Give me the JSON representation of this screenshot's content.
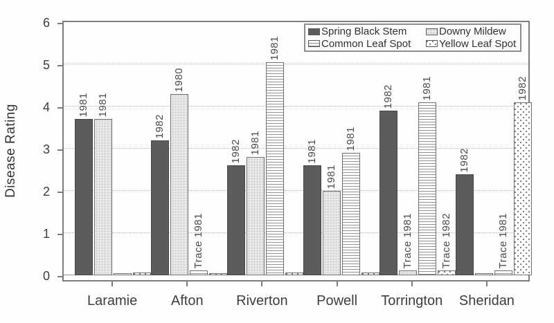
{
  "chart_data": {
    "type": "bar",
    "title": "",
    "xlabel": "",
    "ylabel": "Disease Rating",
    "ylim": [
      0,
      6
    ],
    "yticks": [
      "0",
      "1",
      "2",
      "3",
      "4",
      "5",
      "6"
    ],
    "grid": "horizontal-dotted",
    "legend_position": "top-right-inside",
    "categories": [
      "Laramie",
      "Afton",
      "Riverton",
      "Powell",
      "Torrington",
      "Sheridan"
    ],
    "series": [
      {
        "name": "Spring Black Stem",
        "pattern": "solid-dark-gray",
        "color": "#5c5c5c",
        "values": [
          3.7,
          3.2,
          2.6,
          2.6,
          3.9,
          2.4
        ],
        "bar_labels": [
          "1981",
          "1982",
          "1982",
          "1981",
          "1982",
          "1982"
        ]
      },
      {
        "name": "Downy Mildew",
        "pattern": "solid-light-gray",
        "color": "#d8d8d8",
        "values": [
          3.7,
          4.3,
          2.8,
          2.0,
          0.12,
          0.05
        ],
        "bar_labels": [
          "1981",
          "1980",
          "1981",
          "1981",
          "Trace 1981",
          ""
        ]
      },
      {
        "name": "Common Leaf Spot",
        "pattern": "horizontal-lines",
        "color": "#ffffff",
        "values": [
          0.05,
          0.12,
          5.05,
          2.9,
          4.1,
          0.12
        ],
        "bar_labels": [
          "",
          "Trace 1981",
          "1981",
          "1981",
          "1981",
          "Trace 1981"
        ]
      },
      {
        "name": "Yellow Leaf Spot",
        "pattern": "dots",
        "color": "#ffffff",
        "values": [
          0.07,
          0.05,
          0.07,
          0.07,
          0.12,
          4.1
        ],
        "bar_labels": [
          "",
          "",
          "",
          "",
          "Trace 1982",
          "1982"
        ]
      }
    ]
  },
  "legend": {
    "items": [
      {
        "label": "Spring Black Stem"
      },
      {
        "label": "Downy Mildew"
      },
      {
        "label": "Common Leaf Spot"
      },
      {
        "label": "Yellow Leaf Spot"
      }
    ]
  },
  "colors": {
    "frame": "#7c7c7c",
    "bar_dark": "#5c5c5c",
    "bar_light": "#d8d8d8",
    "pattern_line": "#8f8f8f",
    "text": "#3d3d3d"
  }
}
